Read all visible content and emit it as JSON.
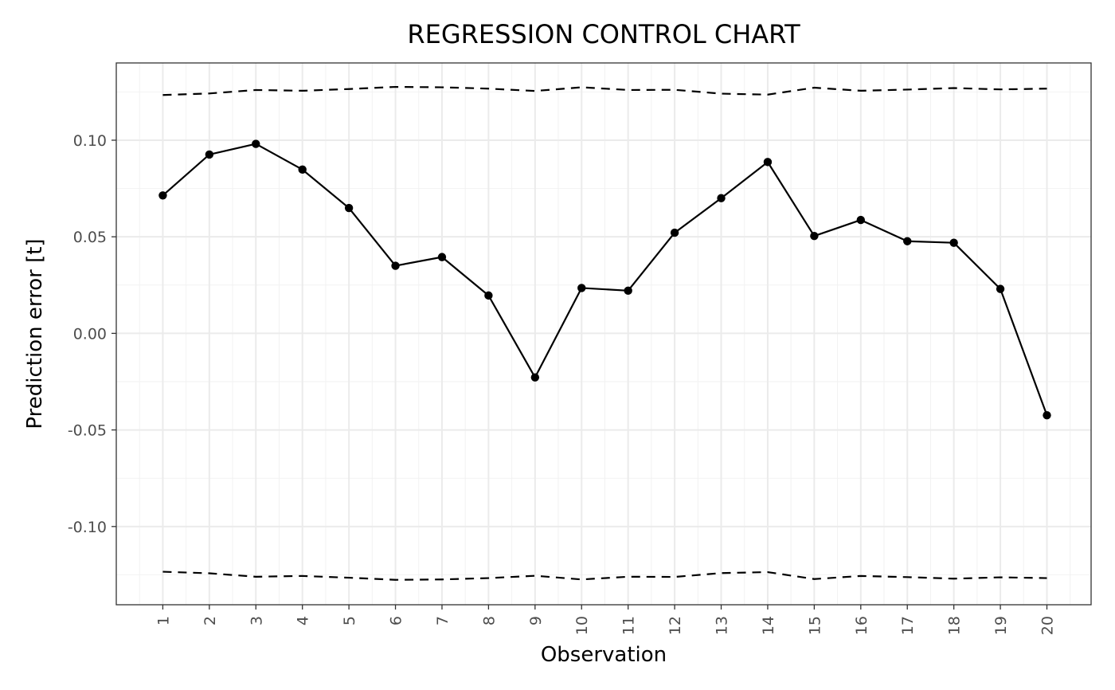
{
  "chart_data": {
    "type": "line",
    "title": "REGRESSION CONTROL CHART",
    "xlabel": "Observation",
    "ylabel": "Prediction error [t]",
    "x": [
      1,
      2,
      3,
      4,
      5,
      6,
      7,
      8,
      9,
      10,
      11,
      12,
      13,
      14,
      15,
      16,
      17,
      18,
      19,
      20
    ],
    "x_tick_labels": [
      "1",
      "2",
      "3",
      "4",
      "5",
      "6",
      "7",
      "8",
      "9",
      "10",
      "11",
      "12",
      "13",
      "14",
      "15",
      "16",
      "17",
      "18",
      "19",
      "20"
    ],
    "y_ticks": [
      0.1,
      0.05,
      0.0,
      -0.05,
      -0.1
    ],
    "y_tick_labels": [
      "0.10",
      "0.05",
      "0.00",
      "-0.05",
      "-0.10"
    ],
    "xlim": [
      0.0,
      20.95
    ],
    "ylim": [
      -0.1405,
      0.14
    ],
    "grid": true,
    "series": [
      {
        "values": [
          0.0714,
          0.0926,
          0.0981,
          0.0848,
          0.0649,
          0.035,
          0.0395,
          0.0196,
          -0.0228,
          0.0235,
          0.0221,
          0.0521,
          0.07,
          0.0887,
          0.0504,
          0.0587,
          0.0477,
          0.0469,
          0.023,
          -0.0424
        ],
        "style": "solid",
        "markers": true,
        "color": "#000000"
      },
      {
        "values": [
          0.1234,
          0.1242,
          0.126,
          0.1256,
          0.1265,
          0.1276,
          0.1274,
          0.1267,
          0.1255,
          0.1274,
          0.126,
          0.1261,
          0.1241,
          0.1236,
          0.1272,
          0.1256,
          0.1262,
          0.127,
          0.1263,
          0.1267
        ],
        "style": "dashed",
        "markers": false,
        "color": "#000000"
      },
      {
        "values": [
          -0.1234,
          -0.1242,
          -0.126,
          -0.1256,
          -0.1265,
          -0.1276,
          -0.1274,
          -0.1267,
          -0.1255,
          -0.1274,
          -0.126,
          -0.1261,
          -0.1241,
          -0.1236,
          -0.1272,
          -0.1256,
          -0.1262,
          -0.127,
          -0.1263,
          -0.1267
        ],
        "style": "dashed",
        "markers": false,
        "color": "#000000"
      }
    ]
  }
}
